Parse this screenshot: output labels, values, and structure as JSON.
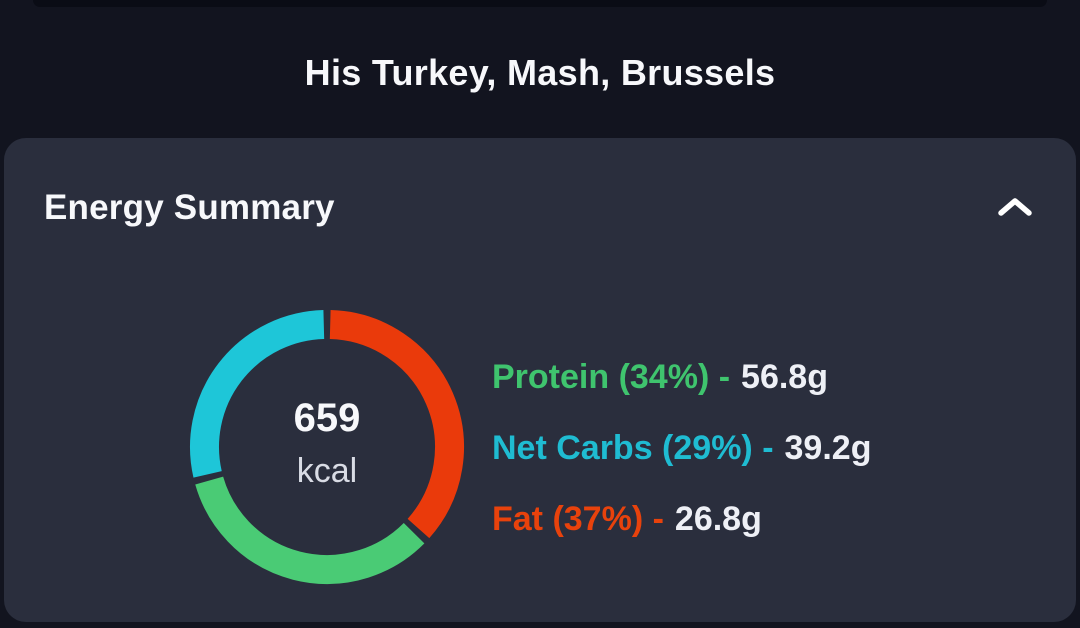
{
  "header": {
    "title": "His Turkey, Mash, Brussels"
  },
  "card": {
    "title": "Energy Summary",
    "collapse_icon": "chevron-up"
  },
  "chart_data": {
    "type": "donut",
    "title": "Energy Summary",
    "center": {
      "value": "659",
      "unit": "kcal"
    },
    "start_angle_deg": -90,
    "direction": "clockwise",
    "gap_deg": 3,
    "ring_stroke_width": 29,
    "segments": [
      {
        "name": "Fat",
        "percent": 37,
        "grams": 26.8,
        "color": "#ea3a0b"
      },
      {
        "name": "Protein",
        "percent": 34,
        "grams": 56.8,
        "color": "#4acb75"
      },
      {
        "name": "Net Carbs",
        "percent": 29,
        "grams": 39.2,
        "color": "#1ec6d8"
      }
    ],
    "legend": [
      {
        "label": "Protein (34%) -",
        "value": "56.8g",
        "color": "#3fc46e"
      },
      {
        "label": "Net Carbs (29%) -",
        "value": "39.2g",
        "color": "#1fbcd2"
      },
      {
        "label": "Fat (37%) -",
        "value": "26.8g",
        "color": "#e8420c"
      }
    ]
  },
  "colors": {
    "page_background": "#12141f",
    "top_strip": "#0a0c15",
    "card_background": "#2a2e3d",
    "title_text": "#f7f8fb",
    "unit_text": "#d9dce5",
    "value_text": "#eef0f6"
  }
}
